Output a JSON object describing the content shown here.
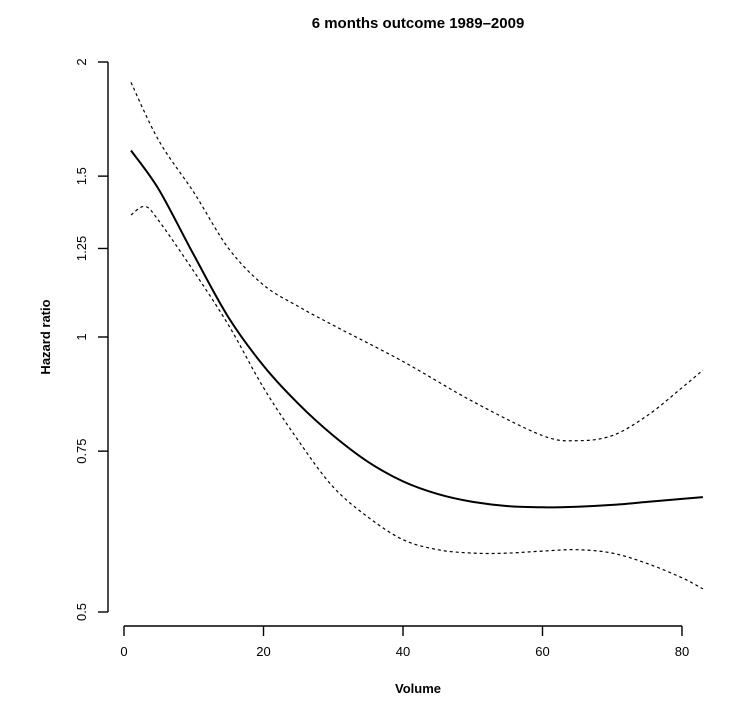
{
  "chart_data": {
    "type": "line",
    "title": "6 months outcome 1989–2009",
    "xlabel": "Volume",
    "ylabel": "Hazard ratio",
    "log_scale_y": true,
    "xlim": [
      0,
      83
    ],
    "ylim": [
      0.5,
      2
    ],
    "x_ticks": [
      0,
      20,
      40,
      60,
      80
    ],
    "x_tick_labels": [
      "0",
      "20",
      "40",
      "60",
      "80"
    ],
    "y_ticks": [
      0.5,
      0.75,
      1,
      1.25,
      1.5,
      2
    ],
    "y_tick_labels": [
      "0.5",
      "0.75",
      "1",
      "1.25",
      "1.5",
      "2"
    ],
    "grid": false,
    "legend": "none",
    "series": [
      {
        "style": "solid",
        "x": [
          1,
          5,
          10,
          15,
          20,
          25,
          30,
          35,
          40,
          45,
          50,
          55,
          60,
          65,
          70,
          75,
          80,
          83
        ],
        "values": [
          1.6,
          1.45,
          1.23,
          1.05,
          0.93,
          0.845,
          0.78,
          0.73,
          0.695,
          0.673,
          0.66,
          0.653,
          0.651,
          0.652,
          0.655,
          0.66,
          0.665,
          0.668
        ]
      },
      {
        "style": "dashed",
        "x": [
          1,
          5,
          10,
          15,
          20,
          25,
          30,
          40,
          50,
          60,
          65,
          70,
          75,
          80,
          83
        ],
        "values": [
          1.9,
          1.64,
          1.44,
          1.25,
          1.14,
          1.08,
          1.03,
          0.94,
          0.85,
          0.78,
          0.77,
          0.78,
          0.82,
          0.88,
          0.92
        ]
      },
      {
        "style": "dashed",
        "x": [
          1,
          3,
          5,
          10,
          15,
          20,
          25,
          30,
          35,
          40,
          45,
          50,
          55,
          60,
          65,
          70,
          75,
          80,
          83
        ],
        "values": [
          1.36,
          1.39,
          1.34,
          1.18,
          1.03,
          0.88,
          0.77,
          0.685,
          0.635,
          0.6,
          0.585,
          0.58,
          0.58,
          0.583,
          0.585,
          0.58,
          0.565,
          0.545,
          0.53
        ]
      }
    ]
  }
}
